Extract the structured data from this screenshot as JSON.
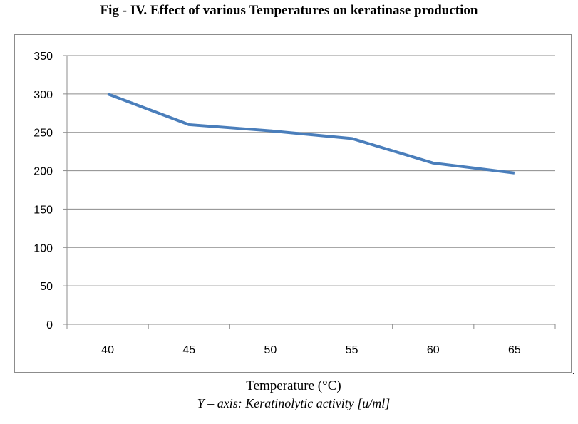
{
  "chart_data": {
    "type": "line",
    "title": "Fig - IV. Effect of various Temperatures on keratinase production",
    "xlabel": "Temperature (°C)",
    "ylabel_note": "Y – axis: Keratinolytic activity [u/ml]",
    "categories": [
      "40",
      "45",
      "50",
      "55",
      "60",
      "65"
    ],
    "series": [
      {
        "name": "Keratinolytic activity",
        "values": [
          300,
          260,
          252,
          242,
          210,
          197
        ],
        "color": "#4a7ebb"
      }
    ],
    "ylim": [
      0,
      350
    ],
    "yticks": [
      0,
      50,
      100,
      150,
      200,
      250,
      300,
      350
    ],
    "grid": true,
    "legend": "none"
  }
}
